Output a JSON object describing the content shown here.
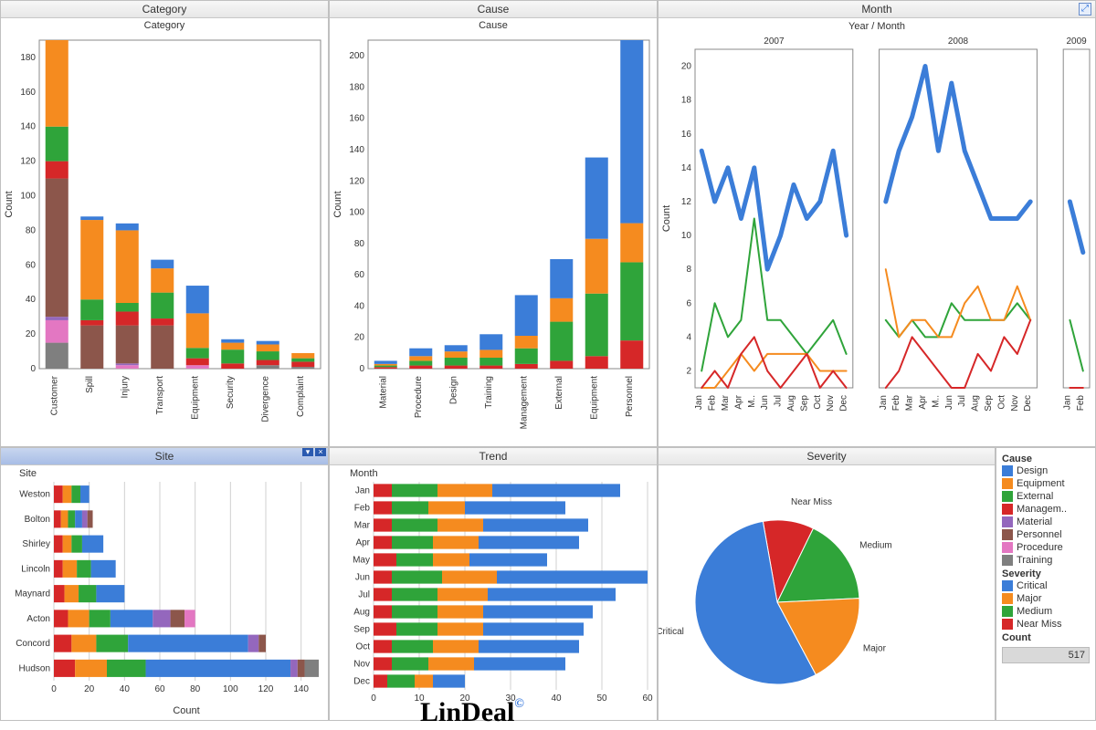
{
  "palette": {
    "design": "#3b7dd8",
    "equipment": "#f58b1f",
    "external": "#2fa43a",
    "management": "#d62728",
    "material": "#9467bd",
    "personnel": "#8c564b",
    "procedure": "#e377c2",
    "training": "#7f7f7f"
  },
  "severity_palette": {
    "critical": "#3b7dd8",
    "major": "#f58b1f",
    "medium": "#2fa43a",
    "nearmiss": "#d62728"
  },
  "common": {
    "grid_color": "#d0d0d0",
    "border_color": "#888888",
    "background": "#ffffff",
    "tick_fontsize": 10,
    "label_fontsize": 11,
    "title_fontsize": 12
  },
  "category_chart": {
    "title": "Category",
    "subtitle": "Category",
    "ylabel": "Count",
    "type": "stacked-bar-vertical",
    "ymax": 190,
    "ytick_step": 20,
    "categories": [
      "Customer",
      "Spill",
      "Injury",
      "Transport",
      "Equipment",
      "Security",
      "Divergence",
      "Complaint"
    ],
    "series_order": [
      "training",
      "procedure",
      "material",
      "personnel",
      "management",
      "external",
      "equipment",
      "design"
    ],
    "stacks": {
      "Customer": {
        "training": 15,
        "procedure": 13,
        "material": 2,
        "personnel": 80,
        "management": 10,
        "external": 20,
        "equipment": 50,
        "design": 0
      },
      "Spill": {
        "training": 0,
        "procedure": 0,
        "material": 0,
        "personnel": 25,
        "management": 3,
        "external": 12,
        "equipment": 46,
        "design": 2
      },
      "Injury": {
        "training": 0,
        "procedure": 2,
        "material": 1,
        "personnel": 22,
        "management": 8,
        "external": 5,
        "equipment": 42,
        "design": 4
      },
      "Transport": {
        "training": 0,
        "procedure": 0,
        "material": 0,
        "personnel": 25,
        "management": 4,
        "external": 15,
        "equipment": 14,
        "design": 5
      },
      "Equipment": {
        "training": 0,
        "procedure": 2,
        "material": 0,
        "personnel": 0,
        "management": 4,
        "external": 6,
        "equipment": 20,
        "design": 16
      },
      "Security": {
        "training": 0,
        "procedure": 0,
        "material": 0,
        "personnel": 0,
        "management": 3,
        "external": 8,
        "equipment": 4,
        "design": 2
      },
      "Divergence": {
        "training": 2,
        "procedure": 0,
        "material": 0,
        "personnel": 0,
        "management": 3,
        "external": 5,
        "equipment": 4,
        "design": 2
      },
      "Complaint": {
        "training": 1,
        "procedure": 0,
        "material": 0,
        "personnel": 0,
        "management": 3,
        "external": 2,
        "equipment": 3,
        "design": 0
      }
    }
  },
  "cause_chart": {
    "title": "Cause",
    "subtitle": "Cause",
    "ylabel": "Count",
    "type": "stacked-bar-vertical",
    "ymax": 210,
    "ytick_step": 20,
    "categories": [
      "Material",
      "Procedure",
      "Design",
      "Training",
      "Management",
      "External",
      "Equipment",
      "Personnel"
    ],
    "series_order": [
      "management",
      "external",
      "equipment",
      "design"
    ],
    "stacks": {
      "Material": {
        "management": 1,
        "external": 1,
        "equipment": 1,
        "design": 2
      },
      "Procedure": {
        "management": 2,
        "external": 3,
        "equipment": 3,
        "design": 5
      },
      "Design": {
        "management": 2,
        "external": 5,
        "equipment": 4,
        "design": 4
      },
      "Training": {
        "management": 2,
        "external": 5,
        "equipment": 5,
        "design": 10
      },
      "Management": {
        "management": 3,
        "external": 10,
        "equipment": 8,
        "design": 26
      },
      "External": {
        "management": 5,
        "external": 25,
        "equipment": 15,
        "design": 25
      },
      "Equipment": {
        "management": 8,
        "external": 40,
        "equipment": 35,
        "design": 52
      },
      "Personnel": {
        "management": 18,
        "external": 50,
        "equipment": 25,
        "design": 117
      }
    }
  },
  "month_chart": {
    "title": "Month",
    "axis_title": "Year / Month",
    "ylabel": "Count",
    "type": "line",
    "ymax": 21,
    "ymin": 1,
    "ytick_step": 2,
    "years": [
      "2007",
      "2008",
      "2009"
    ],
    "months": [
      "Jan",
      "Feb",
      "Mar",
      "Apr",
      "M..",
      "Jun",
      "Jul",
      "Aug",
      "Sep",
      "Oct",
      "Nov",
      "Dec"
    ],
    "line_width_main": 5,
    "line_width_other": 2,
    "series": {
      "design": {
        "color": "#3b7dd8",
        "width": 5,
        "2007": [
          15,
          12,
          14,
          11,
          14,
          8,
          10,
          13,
          11,
          12,
          15,
          10
        ],
        "2008": [
          12,
          15,
          17,
          20,
          15,
          19,
          15,
          13,
          11,
          11,
          11,
          12
        ],
        "2009": [
          12,
          9,
          null,
          null,
          null,
          null,
          null,
          null,
          null,
          null,
          null,
          null
        ]
      },
      "external": {
        "color": "#2fa43a",
        "width": 2,
        "2007": [
          2,
          6,
          4,
          5,
          11,
          5,
          5,
          4,
          3,
          4,
          5,
          3
        ],
        "2008": [
          5,
          4,
          5,
          4,
          4,
          6,
          5,
          5,
          5,
          5,
          6,
          5
        ],
        "2009": [
          5,
          2,
          null,
          null,
          null,
          null,
          null,
          null,
          null,
          null,
          null,
          null
        ]
      },
      "equipment": {
        "color": "#f58b1f",
        "width": 2,
        "2007": [
          1,
          1,
          2,
          3,
          2,
          3,
          3,
          3,
          3,
          2,
          2,
          2
        ],
        "2008": [
          8,
          4,
          5,
          5,
          4,
          4,
          6,
          7,
          5,
          5,
          7,
          5
        ],
        "2009": [
          1,
          1,
          null,
          null,
          null,
          null,
          null,
          null,
          null,
          null,
          null,
          null
        ]
      },
      "management": {
        "color": "#d62728",
        "width": 2,
        "2007": [
          1,
          2,
          1,
          3,
          4,
          2,
          1,
          2,
          3,
          1,
          2,
          1
        ],
        "2008": [
          1,
          2,
          4,
          3,
          2,
          1,
          1,
          3,
          2,
          4,
          3,
          5
        ],
        "2009": [
          1,
          1,
          null,
          null,
          null,
          null,
          null,
          null,
          null,
          null,
          null,
          null
        ]
      }
    }
  },
  "site_chart": {
    "title": "Site",
    "xlabel": "Count",
    "axis_caption": "Site",
    "type": "stacked-bar-horizontal",
    "xmax": 150,
    "xtick_step": 20,
    "sites": [
      "Weston",
      "Bolton",
      "Shirley",
      "Lincoln",
      "Maynard",
      "Acton",
      "Concord",
      "Hudson"
    ],
    "series_order": [
      "management",
      "equipment",
      "external",
      "design",
      "material",
      "personnel",
      "procedure",
      "training"
    ],
    "stacks": {
      "Weston": {
        "management": 5,
        "equipment": 5,
        "external": 5,
        "design": 5,
        "material": 0,
        "personnel": 0,
        "procedure": 0,
        "training": 0
      },
      "Bolton": {
        "management": 4,
        "equipment": 4,
        "external": 4,
        "design": 4,
        "material": 3,
        "personnel": 3,
        "procedure": 0,
        "training": 0
      },
      "Shirley": {
        "management": 5,
        "equipment": 5,
        "external": 6,
        "design": 12,
        "material": 0,
        "personnel": 0,
        "procedure": 0,
        "training": 0
      },
      "Lincoln": {
        "management": 5,
        "equipment": 8,
        "external": 8,
        "design": 14,
        "material": 0,
        "personnel": 0,
        "procedure": 0,
        "training": 0
      },
      "Maynard": {
        "management": 6,
        "equipment": 8,
        "external": 10,
        "design": 16,
        "material": 0,
        "personnel": 0,
        "procedure": 0,
        "training": 0
      },
      "Acton": {
        "management": 8,
        "equipment": 12,
        "external": 12,
        "design": 24,
        "material": 10,
        "personnel": 8,
        "procedure": 6,
        "training": 0
      },
      "Concord": {
        "management": 10,
        "equipment": 14,
        "external": 18,
        "design": 68,
        "material": 6,
        "personnel": 4,
        "procedure": 0,
        "training": 0
      },
      "Hudson": {
        "management": 12,
        "equipment": 18,
        "external": 22,
        "design": 82,
        "material": 4,
        "personnel": 4,
        "procedure": 0,
        "training": 8
      }
    }
  },
  "trend_chart": {
    "title": "Trend",
    "axis_caption": "Month",
    "type": "stacked-bar-horizontal",
    "xmax": 60,
    "xtick_step": 10,
    "months": [
      "Jan",
      "Feb",
      "Mar",
      "Apr",
      "May",
      "Jun",
      "Jul",
      "Aug",
      "Sep",
      "Oct",
      "Nov",
      "Dec"
    ],
    "series_order": [
      "management",
      "external",
      "equipment",
      "design"
    ],
    "stacks": {
      "Jan": {
        "management": 4,
        "external": 10,
        "equipment": 12,
        "design": 28
      },
      "Feb": {
        "management": 4,
        "external": 8,
        "equipment": 8,
        "design": 22
      },
      "Mar": {
        "management": 4,
        "external": 10,
        "equipment": 10,
        "design": 23
      },
      "Apr": {
        "management": 4,
        "external": 9,
        "equipment": 10,
        "design": 22
      },
      "May": {
        "management": 5,
        "external": 8,
        "equipment": 8,
        "design": 17
      },
      "Jun": {
        "management": 4,
        "external": 11,
        "equipment": 12,
        "design": 33
      },
      "Jul": {
        "management": 4,
        "external": 10,
        "equipment": 11,
        "design": 28
      },
      "Aug": {
        "management": 4,
        "external": 10,
        "equipment": 10,
        "design": 24
      },
      "Sep": {
        "management": 5,
        "external": 9,
        "equipment": 10,
        "design": 22
      },
      "Oct": {
        "management": 4,
        "external": 9,
        "equipment": 10,
        "design": 22
      },
      "Nov": {
        "management": 4,
        "external": 8,
        "equipment": 10,
        "design": 20
      },
      "Dec": {
        "management": 3,
        "external": 6,
        "equipment": 4,
        "design": 7
      }
    }
  },
  "severity_chart": {
    "title": "Severity",
    "type": "pie",
    "slices": [
      {
        "label": "Critical",
        "value": 55,
        "color": "#3b7dd8"
      },
      {
        "label": "Major",
        "value": 18,
        "color": "#f58b1f"
      },
      {
        "label": "Medium",
        "value": 17,
        "color": "#2fa43a"
      },
      {
        "label": "Near Miss",
        "value": 10,
        "color": "#d62728"
      }
    ]
  },
  "legend": {
    "cause_title": "Cause",
    "cause_items": [
      {
        "label": "Design",
        "key": "design"
      },
      {
        "label": "Equipment",
        "key": "equipment"
      },
      {
        "label": "External",
        "key": "external"
      },
      {
        "label": "Managem..",
        "key": "management"
      },
      {
        "label": "Material",
        "key": "material"
      },
      {
        "label": "Personnel",
        "key": "personnel"
      },
      {
        "label": "Procedure",
        "key": "procedure"
      },
      {
        "label": "Training",
        "key": "training"
      }
    ],
    "severity_title": "Severity",
    "severity_items": [
      {
        "label": "Critical",
        "key": "critical"
      },
      {
        "label": "Major",
        "key": "major"
      },
      {
        "label": "Medium",
        "key": "medium"
      },
      {
        "label": "Near Miss",
        "key": "nearmiss"
      }
    ],
    "count_title": "Count",
    "count_value": "517"
  },
  "watermark": "LinDeal"
}
